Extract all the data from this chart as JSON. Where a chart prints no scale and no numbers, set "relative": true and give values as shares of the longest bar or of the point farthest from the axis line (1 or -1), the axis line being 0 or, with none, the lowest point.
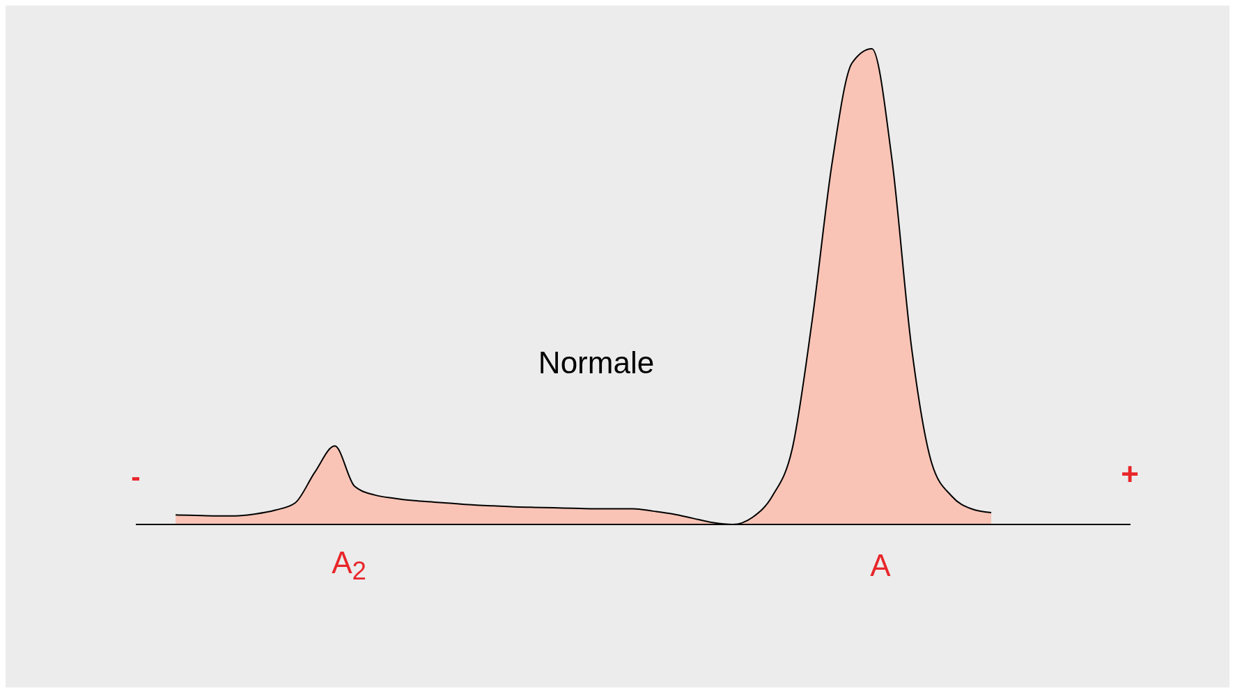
{
  "chart_data": {
    "type": "area",
    "title": "Normale",
    "relative": true,
    "categories": [
      null,
      null,
      null,
      null,
      null,
      null,
      null,
      null,
      null,
      null,
      null,
      null,
      null,
      null,
      null,
      null,
      null,
      null,
      null,
      null,
      null,
      null,
      null,
      null,
      null,
      null,
      null,
      null,
      null,
      null,
      null,
      null,
      null,
      null,
      null,
      null,
      null,
      null,
      null,
      null,
      null,
      null,
      null,
      null,
      null,
      null,
      null,
      null,
      null,
      null,
      null
    ],
    "series": [
      {
        "color": "#f9c4b6",
        "values": [
          null,
          null,
          0.02,
          0.019,
          0.018,
          0.018,
          0.022,
          0.03,
          0.045,
          0.11,
          0.165,
          0.08,
          0.062,
          0.055,
          0.05,
          0.047,
          0.044,
          0.041,
          0.039,
          0.037,
          0.036,
          0.035,
          0.034,
          0.033,
          0.033,
          0.033,
          0.028,
          0.022,
          0.013,
          0.004,
          0,
          0.015,
          0.06,
          0.16,
          0.43,
          0.76,
          0.97,
          1,
          0.77,
          0.37,
          0.13,
          0.06,
          0.033,
          0.025,
          null,
          null,
          null,
          null,
          null,
          null,
          null
        ]
      }
    ],
    "annotations": [
      "-",
      "+",
      "A$_{2}$",
      "A"
    ],
    "grid": false,
    "legend": false
  }
}
